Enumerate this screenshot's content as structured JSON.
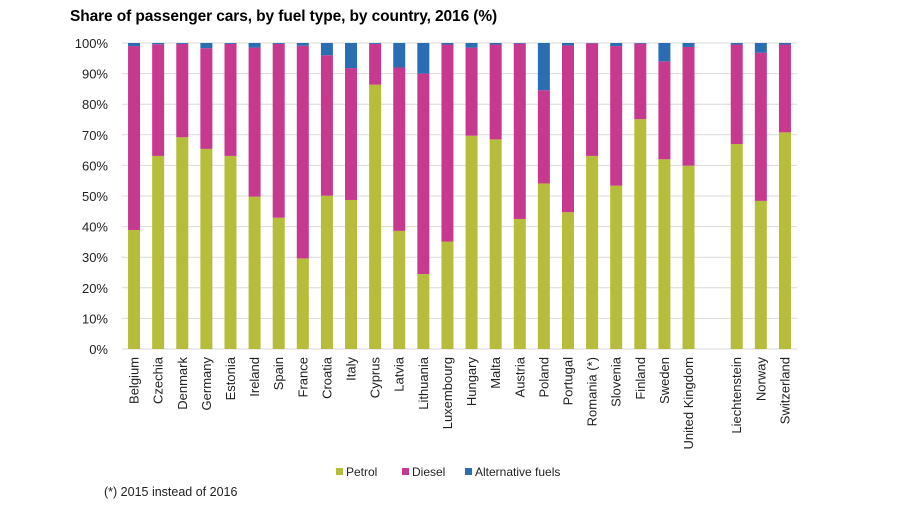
{
  "chart_data": {
    "type": "bar",
    "stacked": true,
    "title": "Share of passenger cars, by fuel type, by country, 2016 (%)",
    "xlabel": "",
    "ylabel": "",
    "ylim": [
      0,
      100
    ],
    "yticks": [
      "0%",
      "10%",
      "20%",
      "30%",
      "40%",
      "50%",
      "60%",
      "70%",
      "80%",
      "90%",
      "100%"
    ],
    "grid": true,
    "legend_position": "bottom",
    "footnote": "(*) 2015 instead of 2016",
    "categories": [
      "Belgium",
      "Czechia",
      "Denmark",
      "Germany",
      "Estonia",
      "Ireland",
      "Spain",
      "France",
      "Croatia",
      "Italy",
      "Cyprus",
      "Latvia",
      "Lithuania",
      "Luxembourg",
      "Hungary",
      "Malta",
      "Austria",
      "Poland",
      "Portugal",
      "Romania  (*)",
      "Slovenia",
      "Finland",
      "Sweden",
      "United Kingdom",
      "",
      "Liechtenstein",
      "Norway",
      "Switzerland"
    ],
    "series": [
      {
        "name": "Petrol",
        "color": "#b5bd3a",
        "values": [
          38.9,
          63.1,
          69.2,
          65.4,
          63.1,
          49.8,
          42.9,
          29.6,
          50.1,
          48.7,
          86.4,
          38.6,
          24.5,
          35.1,
          69.7,
          68.5,
          42.5,
          54.1,
          44.7,
          63.1,
          53.4,
          75.1,
          62.0,
          59.9,
          null,
          67.0,
          48.4,
          70.8
        ]
      },
      {
        "name": "Diesel",
        "color": "#c7398f",
        "values": [
          60.1,
          36.5,
          30.5,
          32.9,
          36.6,
          48.7,
          56.8,
          69.5,
          45.9,
          43.1,
          13.3,
          53.4,
          65.5,
          64.4,
          28.8,
          31.0,
          57.3,
          30.5,
          54.5,
          36.8,
          45.6,
          24.7,
          32.0,
          38.8,
          null,
          32.5,
          48.4,
          28.7
        ]
      },
      {
        "name": "Alternative fuels",
        "color": "#2b6db3",
        "values": [
          1.0,
          0.4,
          0.3,
          1.7,
          0.3,
          1.5,
          0.3,
          0.9,
          4.0,
          8.2,
          0.3,
          8.0,
          10.0,
          0.5,
          1.5,
          0.5,
          0.2,
          15.4,
          0.8,
          0.1,
          1.0,
          0.2,
          6.0,
          1.3,
          null,
          0.5,
          3.2,
          0.5
        ]
      }
    ]
  }
}
